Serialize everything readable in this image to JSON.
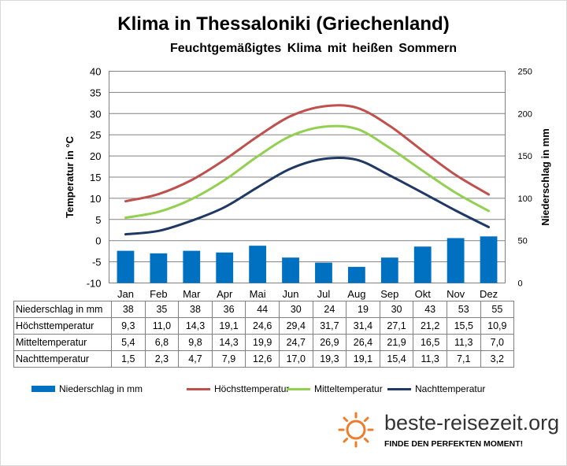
{
  "title": "Klima in Thessaloniki (Griechenland)",
  "subtitle": "Feuchtgemäßigtes Klima mit heißen Sommern",
  "chart_data": {
    "type": "bar+line",
    "categories": [
      "Jan",
      "Feb",
      "Mar",
      "Apr",
      "Mai",
      "Jun",
      "Jul",
      "Aug",
      "Sep",
      "Okt",
      "Nov",
      "Dez"
    ],
    "ylabel_left": "Temperatur in °C",
    "ylabel_right": "Niederschlag in mm",
    "ylim_left": [
      -10,
      40
    ],
    "yticks_left": [
      -10,
      -5,
      0,
      5,
      10,
      15,
      20,
      25,
      30,
      35,
      40
    ],
    "ylim_right": [
      0,
      250
    ],
    "yticks_right": [
      0,
      50,
      100,
      150,
      200,
      250
    ],
    "grid": true,
    "legend_position": "bottom",
    "series": [
      {
        "name": "Niederschlag in mm",
        "type": "bar",
        "axis": "right",
        "color": "#0070c0",
        "values": [
          38,
          35,
          38,
          36,
          44,
          30,
          24,
          19,
          30,
          43,
          53,
          55
        ]
      },
      {
        "name": "Höchsttemperatur",
        "type": "line",
        "axis": "left",
        "color": "#c0504d",
        "values": [
          9.3,
          11.0,
          14.3,
          19.1,
          24.6,
          29.4,
          31.7,
          31.4,
          27.1,
          21.2,
          15.5,
          10.9
        ]
      },
      {
        "name": "Mitteltemperatur",
        "type": "line",
        "axis": "left",
        "color": "#92d050",
        "values": [
          5.4,
          6.8,
          9.8,
          14.3,
          19.9,
          24.7,
          26.9,
          26.4,
          21.9,
          16.5,
          11.3,
          7.0
        ]
      },
      {
        "name": "Nachttemperatur",
        "type": "line",
        "axis": "left",
        "color": "#1f3864",
        "values": [
          1.5,
          2.3,
          4.7,
          7.9,
          12.6,
          17.0,
          19.3,
          19.1,
          15.4,
          11.3,
          7.1,
          3.2
        ]
      }
    ]
  },
  "table": {
    "rows": [
      {
        "label": "Niederschlag in mm",
        "values": [
          "38",
          "35",
          "38",
          "36",
          "44",
          "30",
          "24",
          "19",
          "30",
          "43",
          "53",
          "55"
        ]
      },
      {
        "label": "Höchsttemperatur",
        "values": [
          "9,3",
          "11,0",
          "14,3",
          "19,1",
          "24,6",
          "29,4",
          "31,7",
          "31,4",
          "27,1",
          "21,2",
          "15,5",
          "10,9"
        ]
      },
      {
        "label": "Mitteltemperatur",
        "values": [
          "5,4",
          "6,8",
          "9,8",
          "14,3",
          "19,9",
          "24,7",
          "26,9",
          "26,4",
          "21,9",
          "16,5",
          "11,3",
          "7,0"
        ]
      },
      {
        "label": "Nachttemperatur",
        "values": [
          "1,5",
          "2,3",
          "4,7",
          "7,9",
          "12,6",
          "17,0",
          "19,3",
          "19,1",
          "15,4",
          "11,3",
          "7,1",
          "3,2"
        ]
      }
    ]
  },
  "brand": {
    "name": "beste-reisezeit.org",
    "slogan": "FINDE DEN PERFEKTEN MOMENT!",
    "icon": "sun-icon",
    "icon_color": "#f07c2a"
  }
}
